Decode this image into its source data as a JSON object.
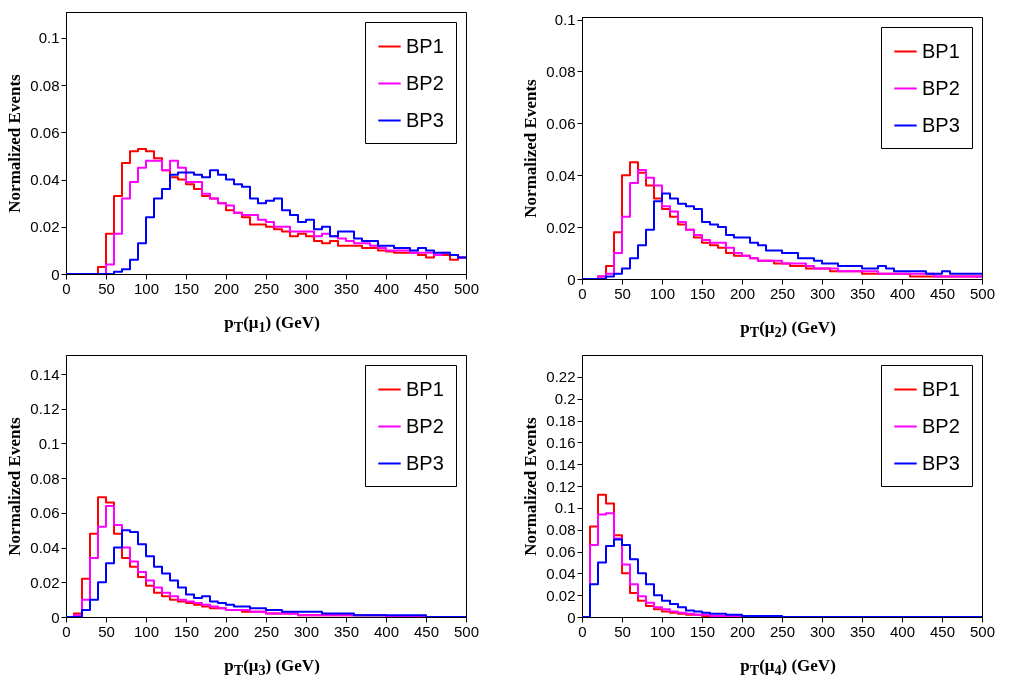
{
  "chart_data": [
    {
      "type": "histogram",
      "xlabel": "p$_{T}$(μ$_{1}$) (GeV)",
      "ylabel": "Normalized Events",
      "legend": "top right",
      "xlim": [
        0,
        500
      ],
      "xticks": [
        0,
        50,
        100,
        150,
        200,
        250,
        300,
        350,
        400,
        450,
        500
      ],
      "ylim": [
        0,
        0.111
      ],
      "yticks": [
        0,
        0.02,
        0.04,
        0.06,
        0.08,
        0.1
      ],
      "bins": [
        0,
        10,
        20,
        30,
        40,
        50,
        60,
        70,
        80,
        90,
        100,
        110,
        120,
        130,
        140,
        150,
        160,
        170,
        180,
        190,
        200,
        210,
        220,
        230,
        240,
        250,
        260,
        270,
        280,
        290,
        300,
        310,
        320,
        330,
        340,
        350,
        360,
        370,
        380,
        390,
        400,
        410,
        420,
        430,
        440,
        450,
        460,
        470,
        480,
        490,
        500
      ],
      "series": [
        {
          "name": "BP1",
          "color": "#ff0000",
          "values": [
            0,
            0,
            0,
            0,
            0.003,
            0.017,
            0.033,
            0.047,
            0.052,
            0.053,
            0.052,
            0.049,
            0.044,
            0.041,
            0.04,
            0.038,
            0.036,
            0.033,
            0.032,
            0.03,
            0.027,
            0.026,
            0.024,
            0.021,
            0.021,
            0.02,
            0.019,
            0.018,
            0.016,
            0.017,
            0.016,
            0.014,
            0.013,
            0.014,
            0.012,
            0.012,
            0.012,
            0.011,
            0.011,
            0.01,
            0.0095,
            0.009,
            0.009,
            0.009,
            0.008,
            0.007,
            0.008,
            0.008,
            0.006,
            0.007
          ]
        },
        {
          "name": "BP2",
          "color": "#ff00ff",
          "values": [
            0,
            0,
            0,
            0,
            0,
            0.004,
            0.017,
            0.032,
            0.039,
            0.045,
            0.048,
            0.048,
            0.044,
            0.048,
            0.045,
            0.039,
            0.039,
            0.034,
            0.032,
            0.03,
            0.029,
            0.026,
            0.025,
            0.025,
            0.023,
            0.022,
            0.02,
            0.02,
            0.018,
            0.018,
            0.018,
            0.016,
            0.017,
            0.016,
            0.015,
            0.014,
            0.013,
            0.013,
            0.012,
            0.011,
            0.01,
            0.01,
            0.01,
            0.009,
            0.009,
            0.009,
            0.008,
            0.009,
            0.008,
            0.007
          ]
        },
        {
          "name": "BP3",
          "color": "#0000ff",
          "values": [
            0,
            0,
            0,
            0,
            0,
            0,
            0.001,
            0.002,
            0.006,
            0.013,
            0.024,
            0.032,
            0.036,
            0.042,
            0.043,
            0.043,
            0.042,
            0.041,
            0.044,
            0.042,
            0.04,
            0.038,
            0.037,
            0.032,
            0.03,
            0.031,
            0.032,
            0.027,
            0.025,
            0.022,
            0.023,
            0.019,
            0.02,
            0.016,
            0.018,
            0.018,
            0.015,
            0.014,
            0.014,
            0.012,
            0.012,
            0.011,
            0.011,
            0.01,
            0.011,
            0.01,
            0.009,
            0.009,
            0.008,
            0.007
          ]
        }
      ]
    },
    {
      "type": "histogram",
      "xlabel": "p$_{T}$(μ$_{2}$) (GeV)",
      "ylabel": "Normalized Events",
      "legend": "top right",
      "xlim": [
        0,
        500
      ],
      "xticks": [
        0,
        50,
        100,
        150,
        200,
        250,
        300,
        350,
        400,
        450,
        500
      ],
      "ylim": [
        0,
        0.101
      ],
      "yticks": [
        0,
        0.02,
        0.04,
        0.06,
        0.08,
        0.1
      ],
      "bins": [
        0,
        10,
        20,
        30,
        40,
        50,
        60,
        70,
        80,
        90,
        100,
        110,
        120,
        130,
        140,
        150,
        160,
        170,
        180,
        190,
        200,
        210,
        220,
        230,
        240,
        250,
        260,
        270,
        280,
        290,
        300,
        310,
        320,
        330,
        340,
        350,
        360,
        370,
        380,
        390,
        400,
        410,
        420,
        430,
        440,
        450,
        460,
        470,
        480,
        490,
        500
      ],
      "series": [
        {
          "name": "BP1",
          "color": "#ff0000",
          "values": [
            0,
            0,
            0.001,
            0.005,
            0.018,
            0.04,
            0.045,
            0.041,
            0.036,
            0.031,
            0.027,
            0.024,
            0.021,
            0.019,
            0.016,
            0.014,
            0.013,
            0.012,
            0.01,
            0.009,
            0.009,
            0.008,
            0.007,
            0.007,
            0.006,
            0.006,
            0.005,
            0.005,
            0.004,
            0.004,
            0.004,
            0.003,
            0.003,
            0.003,
            0.003,
            0.002,
            0.002,
            0.002,
            0.002,
            0.002,
            0.002,
            0.001,
            0.001,
            0.001,
            0.001,
            0.001,
            0.001,
            0.001,
            0.001,
            0.001
          ]
        },
        {
          "name": "BP2",
          "color": "#ff00ff",
          "values": [
            0,
            0,
            0.001,
            0.002,
            0.01,
            0.024,
            0.037,
            0.042,
            0.039,
            0.036,
            0.028,
            0.026,
            0.022,
            0.019,
            0.017,
            0.015,
            0.014,
            0.014,
            0.012,
            0.01,
            0.009,
            0.008,
            0.007,
            0.007,
            0.007,
            0.006,
            0.006,
            0.006,
            0.005,
            0.004,
            0.004,
            0.004,
            0.003,
            0.003,
            0.003,
            0.003,
            0.003,
            0.002,
            0.002,
            0.002,
            0.002,
            0.002,
            0.002,
            0.002,
            0.001,
            0.001,
            0.001,
            0.001,
            0.001,
            0.001
          ]
        },
        {
          "name": "BP3",
          "color": "#0000ff",
          "values": [
            0,
            0,
            0,
            0.001,
            0.002,
            0.004,
            0.008,
            0.013,
            0.019,
            0.03,
            0.033,
            0.031,
            0.029,
            0.028,
            0.027,
            0.022,
            0.021,
            0.02,
            0.017,
            0.016,
            0.016,
            0.014,
            0.013,
            0.011,
            0.011,
            0.01,
            0.01,
            0.008,
            0.008,
            0.007,
            0.006,
            0.006,
            0.005,
            0.005,
            0.005,
            0.004,
            0.004,
            0.005,
            0.004,
            0.003,
            0.003,
            0.003,
            0.003,
            0.002,
            0.002,
            0.003,
            0.002,
            0.002,
            0.002,
            0.002
          ]
        }
      ]
    },
    {
      "type": "histogram",
      "xlabel": "p$_{T}$(μ$_{3}$) (GeV)",
      "ylabel": "Normalized Events",
      "legend": "top right",
      "xlim": [
        0,
        500
      ],
      "xticks": [
        0,
        50,
        100,
        150,
        200,
        250,
        300,
        350,
        400,
        450,
        500
      ],
      "ylim": [
        0,
        0.151
      ],
      "yticks": [
        0,
        0.02,
        0.04,
        0.06,
        0.08,
        0.1,
        0.12,
        0.14
      ],
      "bins": [
        0,
        10,
        20,
        30,
        40,
        50,
        60,
        70,
        80,
        90,
        100,
        110,
        120,
        130,
        140,
        150,
        160,
        170,
        180,
        190,
        200,
        210,
        220,
        230,
        240,
        250,
        260,
        270,
        280,
        290,
        300,
        310,
        320,
        330,
        340,
        350,
        360,
        370,
        380,
        390,
        400,
        410,
        420,
        430,
        440,
        450,
        460,
        470,
        480,
        490,
        500
      ],
      "series": [
        {
          "name": "BP1",
          "color": "#ff0000",
          "values": [
            0,
            0.002,
            0.022,
            0.048,
            0.069,
            0.066,
            0.048,
            0.034,
            0.029,
            0.023,
            0.018,
            0.014,
            0.012,
            0.01,
            0.009,
            0.008,
            0.007,
            0.006,
            0.005,
            0.005,
            0.004,
            0.004,
            0.003,
            0.003,
            0.003,
            0.002,
            0.002,
            0.002,
            0.002,
            0.001,
            0.001,
            0.001,
            0.001,
            0.001,
            0.001,
            0.001,
            0.001,
            0.001,
            0.001,
            0.001,
            0,
            0,
            0,
            0,
            0,
            0,
            0,
            0,
            0,
            0
          ]
        },
        {
          "name": "BP2",
          "color": "#ff00ff",
          "values": [
            0,
            0.001,
            0.01,
            0.034,
            0.052,
            0.064,
            0.053,
            0.04,
            0.032,
            0.026,
            0.021,
            0.017,
            0.014,
            0.012,
            0.01,
            0.009,
            0.008,
            0.007,
            0.006,
            0.005,
            0.004,
            0.004,
            0.004,
            0.003,
            0.003,
            0.002,
            0.002,
            0.002,
            0.002,
            0.001,
            0.001,
            0.001,
            0.001,
            0.001,
            0.001,
            0.001,
            0.001,
            0.001,
            0.001,
            0.001,
            0,
            0,
            0,
            0,
            0,
            0,
            0,
            0,
            0,
            0
          ]
        },
        {
          "name": "BP3",
          "color": "#0000ff",
          "values": [
            0,
            0,
            0.004,
            0.01,
            0.02,
            0.031,
            0.04,
            0.05,
            0.049,
            0.042,
            0.035,
            0.029,
            0.025,
            0.021,
            0.017,
            0.013,
            0.011,
            0.012,
            0.009,
            0.008,
            0.007,
            0.006,
            0.006,
            0.005,
            0.005,
            0.004,
            0.004,
            0.003,
            0.003,
            0.003,
            0.003,
            0.003,
            0.002,
            0.002,
            0.002,
            0.002,
            0.001,
            0.001,
            0.001,
            0.001,
            0.001,
            0.001,
            0.001,
            0.001,
            0.001,
            0,
            0,
            0,
            0,
            0
          ]
        }
      ]
    },
    {
      "type": "histogram",
      "xlabel": "p$_{T}$(μ$_{4}$) (GeV)",
      "ylabel": "Normalized Events",
      "legend": "top right",
      "xlim": [
        0,
        500
      ],
      "xticks": [
        0,
        50,
        100,
        150,
        200,
        250,
        300,
        350,
        400,
        450,
        500
      ],
      "ylim": [
        0,
        0.24
      ],
      "yticks": [
        0,
        0.02,
        0.04,
        0.06,
        0.08,
        0.1,
        0.12,
        0.14,
        0.16,
        0.18,
        0.2,
        0.22
      ],
      "bins": [
        0,
        10,
        20,
        30,
        40,
        50,
        60,
        70,
        80,
        90,
        100,
        110,
        120,
        130,
        140,
        150,
        160,
        170,
        180,
        190,
        200,
        210,
        220,
        230,
        240,
        250,
        260,
        270,
        280,
        290,
        300,
        310,
        320,
        330,
        340,
        350,
        360,
        370,
        380,
        390,
        400,
        410,
        420,
        430,
        440,
        450,
        460,
        470,
        480,
        490,
        500
      ],
      "series": [
        {
          "name": "BP1",
          "color": "#ff0000",
          "values": [
            0,
            0.083,
            0.112,
            0.104,
            0.075,
            0.04,
            0.022,
            0.015,
            0.01,
            0.007,
            0.005,
            0.004,
            0.003,
            0.002,
            0.002,
            0.001,
            0.001,
            0.001,
            0.001,
            0.001,
            0,
            0,
            0,
            0,
            0,
            0,
            0,
            0,
            0,
            0,
            0,
            0,
            0,
            0,
            0,
            0,
            0,
            0,
            0,
            0,
            0,
            0,
            0,
            0,
            0,
            0,
            0,
            0,
            0,
            0
          ]
        },
        {
          "name": "BP2",
          "color": "#ff00ff",
          "values": [
            0,
            0.066,
            0.094,
            0.095,
            0.072,
            0.048,
            0.03,
            0.019,
            0.013,
            0.009,
            0.007,
            0.005,
            0.004,
            0.003,
            0.002,
            0.002,
            0.001,
            0.001,
            0.001,
            0.001,
            0,
            0,
            0,
            0,
            0,
            0,
            0,
            0,
            0,
            0,
            0,
            0,
            0,
            0,
            0,
            0,
            0,
            0,
            0,
            0,
            0,
            0,
            0,
            0,
            0,
            0,
            0,
            0,
            0,
            0
          ]
        },
        {
          "name": "BP3",
          "color": "#0000ff",
          "values": [
            0,
            0.03,
            0.05,
            0.065,
            0.071,
            0.066,
            0.053,
            0.04,
            0.03,
            0.02,
            0.015,
            0.012,
            0.009,
            0.006,
            0.005,
            0.004,
            0.003,
            0.003,
            0.002,
            0.002,
            0.001,
            0.001,
            0.001,
            0.001,
            0.001,
            0,
            0,
            0,
            0,
            0,
            0,
            0,
            0,
            0,
            0,
            0,
            0,
            0,
            0,
            0,
            0,
            0,
            0,
            0,
            0,
            0,
            0,
            0,
            0,
            0
          ]
        }
      ]
    }
  ]
}
